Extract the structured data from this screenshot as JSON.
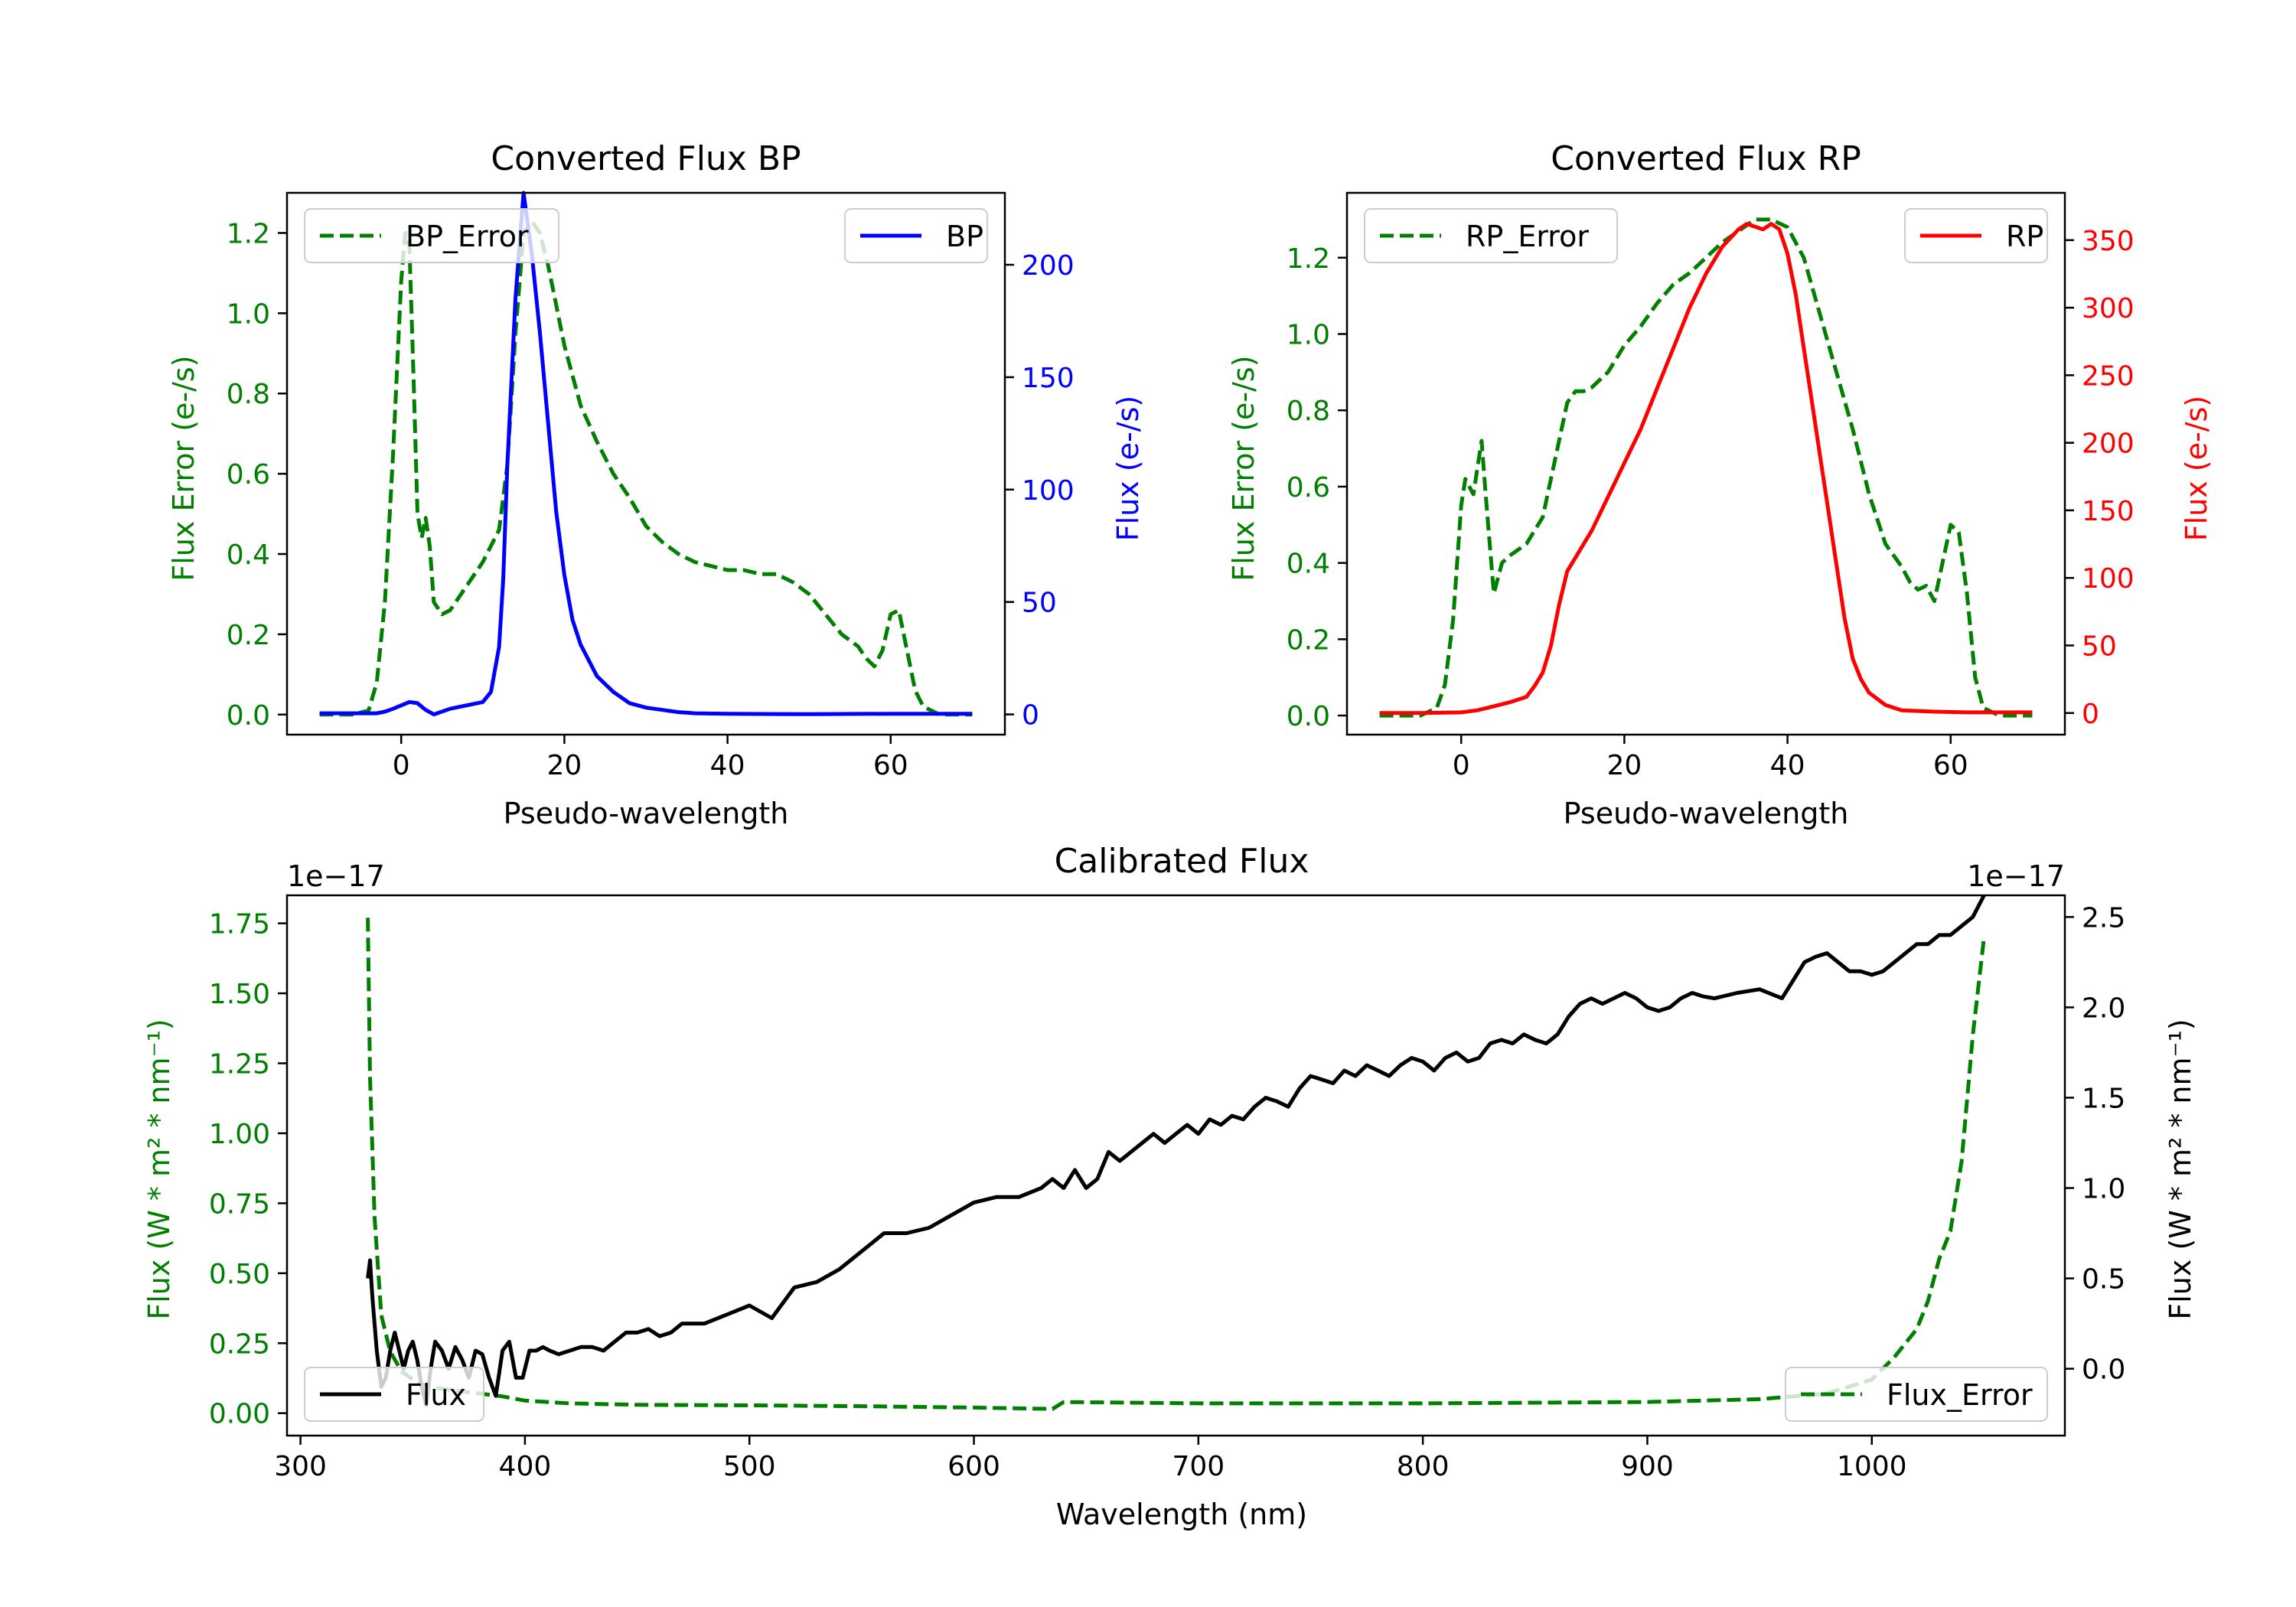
{
  "colors": {
    "bp": "#0000ff",
    "rp": "#ff0000",
    "error": "#007f00",
    "flux": "#000000",
    "axis": "#000000"
  },
  "chart_data": [
    {
      "id": "bp",
      "type": "line",
      "title": "Converted Flux BP",
      "xlabel": "Pseudo-wavelength",
      "ylabel_left": "Flux Error (e-/s)",
      "ylabel_right": "Flux (e-/s)",
      "xlim": [
        -14,
        74
      ],
      "ylim_left": [
        -0.05,
        1.3
      ],
      "ylim_right": [
        -9,
        232
      ],
      "xticks": [
        0,
        20,
        40,
        60
      ],
      "yticks_left": [
        0.0,
        0.2,
        0.4,
        0.6,
        0.8,
        1.0,
        1.2
      ],
      "ytick_labels_left": [
        "0.0",
        "0.2",
        "0.4",
        "0.6",
        "0.8",
        "1.0",
        "1.2"
      ],
      "yticks_right": [
        0,
        50,
        100,
        150,
        200
      ],
      "ytick_labels_right": [
        "0",
        "50",
        "100",
        "150",
        "200"
      ],
      "legend_left": "BP_Error",
      "legend_right": "BP",
      "series": [
        {
          "name": "BP_Error",
          "axis": "left",
          "style": "dashed",
          "color_key": "error",
          "x": [
            -10,
            -6,
            -4,
            -3,
            -2,
            -1,
            0,
            0.5,
            1,
            1.5,
            2,
            2.5,
            3,
            3.5,
            4,
            5,
            6,
            8,
            10,
            12,
            13,
            14,
            15,
            16,
            17,
            18,
            19,
            20,
            22,
            24,
            26,
            28,
            30,
            32,
            34,
            36,
            38,
            40,
            42,
            44,
            46,
            48,
            50,
            52,
            54,
            56,
            57,
            58,
            59,
            60,
            61,
            62,
            63,
            64,
            66,
            70
          ],
          "y": [
            0.0,
            0.0,
            0.01,
            0.08,
            0.28,
            0.65,
            1.08,
            1.2,
            1.17,
            0.85,
            0.5,
            0.44,
            0.49,
            0.42,
            0.28,
            0.25,
            0.26,
            0.32,
            0.38,
            0.46,
            0.62,
            0.95,
            1.2,
            1.23,
            1.2,
            1.12,
            1.02,
            0.92,
            0.77,
            0.68,
            0.6,
            0.54,
            0.47,
            0.43,
            0.4,
            0.38,
            0.37,
            0.36,
            0.36,
            0.35,
            0.35,
            0.33,
            0.3,
            0.25,
            0.2,
            0.17,
            0.14,
            0.12,
            0.16,
            0.25,
            0.26,
            0.16,
            0.06,
            0.02,
            0.0,
            0.0
          ]
        },
        {
          "name": "BP",
          "axis": "right",
          "style": "solid",
          "color_key": "bp",
          "x": [
            -10,
            -6,
            -3,
            -2,
            -1,
            0,
            1,
            2,
            3,
            4,
            6,
            8,
            10,
            11,
            12,
            12.5,
            13,
            14,
            15,
            16,
            17,
            18,
            19,
            20,
            21,
            22,
            23,
            24,
            26,
            28,
            30,
            32,
            34,
            36,
            40,
            50,
            60,
            70
          ],
          "y": [
            0.5,
            0.5,
            0.5,
            1.2,
            2.5,
            4,
            5.5,
            5,
            2,
            0,
            2.5,
            4,
            5.5,
            10,
            30,
            60,
            110,
            185,
            232,
            205,
            170,
            130,
            90,
            62,
            42,
            31,
            24,
            17,
            10,
            5,
            3,
            2,
            1,
            0.5,
            0.3,
            0.1,
            0.3,
            0.3
          ]
        }
      ]
    },
    {
      "id": "rp",
      "type": "line",
      "title": "Converted Flux RP",
      "xlabel": "Pseudo-wavelength",
      "ylabel_left": "Flux Error (e-/s)",
      "ylabel_right": "Flux (e-/s)",
      "xlim": [
        -14,
        74
      ],
      "ylim_left": [
        -0.05,
        1.37
      ],
      "ylim_right": [
        -16,
        385
      ],
      "xticks": [
        0,
        20,
        40,
        60
      ],
      "yticks_left": [
        0.0,
        0.2,
        0.4,
        0.6,
        0.8,
        1.0,
        1.2
      ],
      "ytick_labels_left": [
        "0.0",
        "0.2",
        "0.4",
        "0.6",
        "0.8",
        "1.0",
        "1.2"
      ],
      "yticks_right": [
        0,
        50,
        100,
        150,
        200,
        250,
        300,
        350
      ],
      "ytick_labels_right": [
        "0",
        "50",
        "100",
        "150",
        "200",
        "250",
        "300",
        "350"
      ],
      "legend_left": "RP_Error",
      "legend_right": "RP",
      "series": [
        {
          "name": "RP_Error",
          "axis": "left",
          "style": "dashed",
          "color_key": "error",
          "x": [
            -10,
            -5,
            -3,
            -2,
            -1,
            0,
            0.5,
            1,
            1.5,
            2,
            2.5,
            3,
            3.5,
            4,
            5,
            6,
            8,
            10,
            11,
            12,
            13,
            14,
            15,
            16,
            17,
            18,
            20,
            22,
            24,
            26,
            28,
            30,
            32,
            34,
            36,
            38,
            40,
            42,
            44,
            46,
            48,
            50,
            52,
            54,
            55,
            56,
            57,
            58,
            59,
            60,
            61,
            62,
            63,
            64,
            66,
            70
          ],
          "y": [
            0.0,
            0.0,
            0.02,
            0.08,
            0.25,
            0.55,
            0.62,
            0.6,
            0.58,
            0.65,
            0.72,
            0.58,
            0.45,
            0.32,
            0.4,
            0.42,
            0.45,
            0.52,
            0.62,
            0.72,
            0.82,
            0.85,
            0.85,
            0.86,
            0.88,
            0.9,
            0.97,
            1.02,
            1.08,
            1.13,
            1.16,
            1.2,
            1.24,
            1.27,
            1.3,
            1.3,
            1.28,
            1.2,
            1.05,
            0.9,
            0.75,
            0.58,
            0.45,
            0.39,
            0.35,
            0.33,
            0.34,
            0.3,
            0.4,
            0.5,
            0.48,
            0.32,
            0.1,
            0.02,
            0.0,
            0.0
          ]
        },
        {
          "name": "RP",
          "axis": "right",
          "style": "solid",
          "color_key": "rp",
          "x": [
            -10,
            -5,
            0,
            2,
            4,
            6,
            8,
            9,
            10,
            11,
            12,
            13,
            14,
            16,
            18,
            20,
            22,
            24,
            26,
            28,
            30,
            32,
            34,
            35,
            36,
            37,
            38,
            39,
            40,
            41,
            42,
            43,
            44,
            45,
            46,
            47,
            48,
            49,
            50,
            52,
            54,
            58,
            62,
            70
          ],
          "y": [
            0,
            0,
            0.5,
            2,
            5,
            8,
            12,
            20,
            30,
            50,
            80,
            105,
            115,
            135,
            160,
            185,
            210,
            240,
            270,
            300,
            325,
            345,
            358,
            362,
            360,
            358,
            362,
            358,
            340,
            310,
            270,
            230,
            190,
            150,
            110,
            70,
            40,
            25,
            15,
            6,
            2,
            1,
            0.5,
            0.5
          ]
        }
      ]
    },
    {
      "id": "calibrated",
      "type": "line",
      "title": "Calibrated Flux",
      "xlabel": "Wavelength (nm)",
      "ylabel_left": "Flux (W * m² * nm⁻¹)",
      "ylabel_right": "Flux (W * m² * nm⁻¹)",
      "offset_left": "1e−17",
      "offset_right": "1e−17",
      "xlim": [
        294,
        1086
      ],
      "ylim_left": [
        -0.08,
        1.85
      ],
      "ylim_right": [
        -0.37,
        2.62
      ],
      "xticks": [
        300,
        400,
        500,
        600,
        700,
        800,
        900,
        1000
      ],
      "yticks_left": [
        0.0,
        0.25,
        0.5,
        0.75,
        1.0,
        1.25,
        1.5,
        1.75
      ],
      "ytick_labels_left": [
        "0.00",
        "0.25",
        "0.50",
        "0.75",
        "1.00",
        "1.25",
        "1.50",
        "1.75"
      ],
      "yticks_right": [
        0.0,
        0.5,
        1.0,
        1.5,
        2.0,
        2.5
      ],
      "ytick_labels_right": [
        "0.0",
        "0.5",
        "1.0",
        "1.5",
        "2.0",
        "2.5"
      ],
      "legend_left": "Flux",
      "legend_right": "Flux_Error",
      "series": [
        {
          "name": "Flux_Error",
          "axis": "left",
          "style": "dashed",
          "color_key": "error",
          "x": [
            330,
            331,
            333,
            336,
            340,
            345,
            350,
            355,
            360,
            370,
            380,
            390,
            400,
            420,
            450,
            500,
            550,
            600,
            635,
            640,
            700,
            800,
            900,
            950,
            980,
            1000,
            1010,
            1020,
            1025,
            1030,
            1035,
            1040,
            1045,
            1050
          ],
          "y": [
            1.77,
            1.2,
            0.7,
            0.35,
            0.22,
            0.15,
            0.12,
            0.1,
            0.09,
            0.08,
            0.07,
            0.06,
            0.045,
            0.035,
            0.03,
            0.028,
            0.025,
            0.02,
            0.015,
            0.04,
            0.035,
            0.035,
            0.04,
            0.05,
            0.07,
            0.12,
            0.2,
            0.3,
            0.4,
            0.55,
            0.65,
            0.9,
            1.35,
            1.7
          ]
        },
        {
          "name": "Flux",
          "axis": "right",
          "style": "solid",
          "color_key": "flux",
          "x": [
            330,
            331,
            332,
            334,
            336,
            338,
            340,
            342,
            344,
            346,
            348,
            350,
            352,
            354,
            356,
            358,
            360,
            363,
            366,
            369,
            372,
            375,
            378,
            381,
            384,
            387,
            390,
            393,
            396,
            399,
            402,
            405,
            408,
            411,
            415,
            420,
            425,
            430,
            435,
            440,
            445,
            450,
            455,
            460,
            465,
            470,
            480,
            490,
            500,
            510,
            520,
            530,
            540,
            550,
            560,
            570,
            580,
            590,
            600,
            610,
            620,
            630,
            635,
            640,
            645,
            650,
            655,
            660,
            665,
            670,
            675,
            680,
            685,
            690,
            695,
            700,
            705,
            710,
            715,
            720,
            725,
            730,
            735,
            740,
            745,
            750,
            755,
            760,
            765,
            770,
            775,
            780,
            785,
            790,
            795,
            800,
            805,
            810,
            815,
            820,
            825,
            830,
            835,
            840,
            845,
            850,
            855,
            860,
            865,
            870,
            875,
            880,
            885,
            890,
            895,
            900,
            905,
            910,
            915,
            920,
            925,
            930,
            940,
            950,
            960,
            965,
            970,
            975,
            980,
            985,
            990,
            995,
            1000,
            1005,
            1010,
            1015,
            1020,
            1025,
            1030,
            1035,
            1040,
            1045,
            1050
          ],
          "y": [
            0.5,
            0.6,
            0.4,
            0.1,
            -0.1,
            -0.05,
            0.1,
            0.2,
            0.1,
            0.0,
            0.1,
            0.15,
            0.05,
            -0.1,
            -0.2,
            0.0,
            0.15,
            0.1,
            0.0,
            0.12,
            0.05,
            -0.05,
            0.1,
            0.08,
            -0.05,
            -0.15,
            0.1,
            0.15,
            -0.05,
            -0.05,
            0.1,
            0.1,
            0.12,
            0.1,
            0.08,
            0.1,
            0.12,
            0.12,
            0.1,
            0.15,
            0.2,
            0.2,
            0.22,
            0.18,
            0.2,
            0.25,
            0.25,
            0.3,
            0.35,
            0.28,
            0.45,
            0.48,
            0.55,
            0.65,
            0.75,
            0.75,
            0.78,
            0.85,
            0.92,
            0.95,
            0.95,
            1.0,
            1.05,
            1.0,
            1.1,
            1.0,
            1.05,
            1.2,
            1.15,
            1.2,
            1.25,
            1.3,
            1.25,
            1.3,
            1.35,
            1.3,
            1.38,
            1.35,
            1.4,
            1.38,
            1.45,
            1.5,
            1.48,
            1.45,
            1.55,
            1.62,
            1.6,
            1.58,
            1.65,
            1.62,
            1.68,
            1.65,
            1.62,
            1.68,
            1.72,
            1.7,
            1.65,
            1.72,
            1.75,
            1.7,
            1.72,
            1.8,
            1.82,
            1.8,
            1.85,
            1.82,
            1.8,
            1.85,
            1.95,
            2.02,
            2.05,
            2.02,
            2.05,
            2.08,
            2.05,
            2.0,
            1.98,
            2.0,
            2.05,
            2.08,
            2.06,
            2.05,
            2.08,
            2.1,
            2.05,
            2.15,
            2.25,
            2.28,
            2.3,
            2.25,
            2.2,
            2.2,
            2.18,
            2.2,
            2.25,
            2.3,
            2.35,
            2.35,
            2.4,
            2.4,
            2.45,
            2.5,
            2.62
          ]
        }
      ]
    }
  ]
}
